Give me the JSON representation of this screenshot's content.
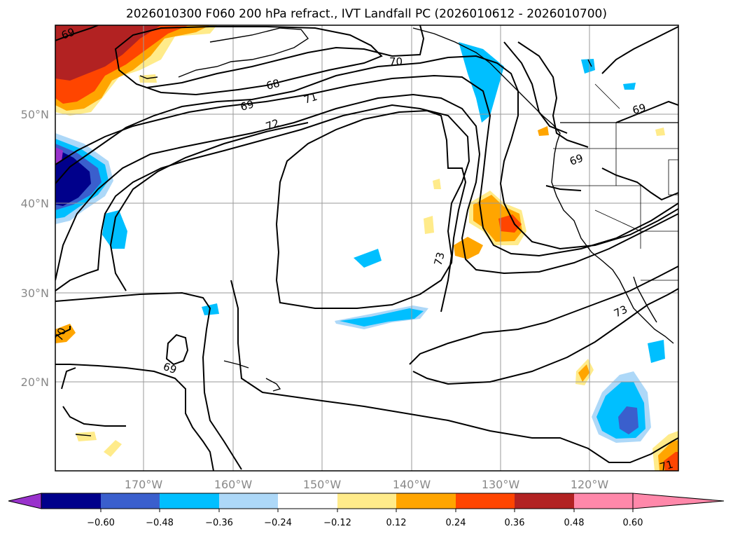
{
  "title": "2026010300 F060 200 hPa refract., IVT Landfall PC (2026010612 - 2026010700)",
  "map": {
    "lat_labels": [
      "50°N",
      "40°N",
      "30°N",
      "20°N"
    ],
    "lon_labels": [
      "170°W",
      "160°W",
      "150°W",
      "140°W",
      "130°W",
      "120°W"
    ],
    "contour_labels": [
      "69",
      "70",
      "68",
      "69",
      "71",
      "72",
      "73",
      "73",
      "69",
      "69",
      "69",
      "70",
      "71"
    ]
  },
  "colorbar": {
    "ticks": [
      "−0.60",
      "−0.48",
      "−0.36",
      "−0.24",
      "−0.12",
      "0.12",
      "0.24",
      "0.36",
      "0.48",
      "0.60"
    ],
    "colors": [
      "#9932cc",
      "#00008b",
      "#3a5fcd",
      "#00bfff",
      "#add8f8",
      "#ffffff",
      "#ffeb8a",
      "#ffa500",
      "#ff4500",
      "#b22222",
      "#ff88aa"
    ]
  }
}
